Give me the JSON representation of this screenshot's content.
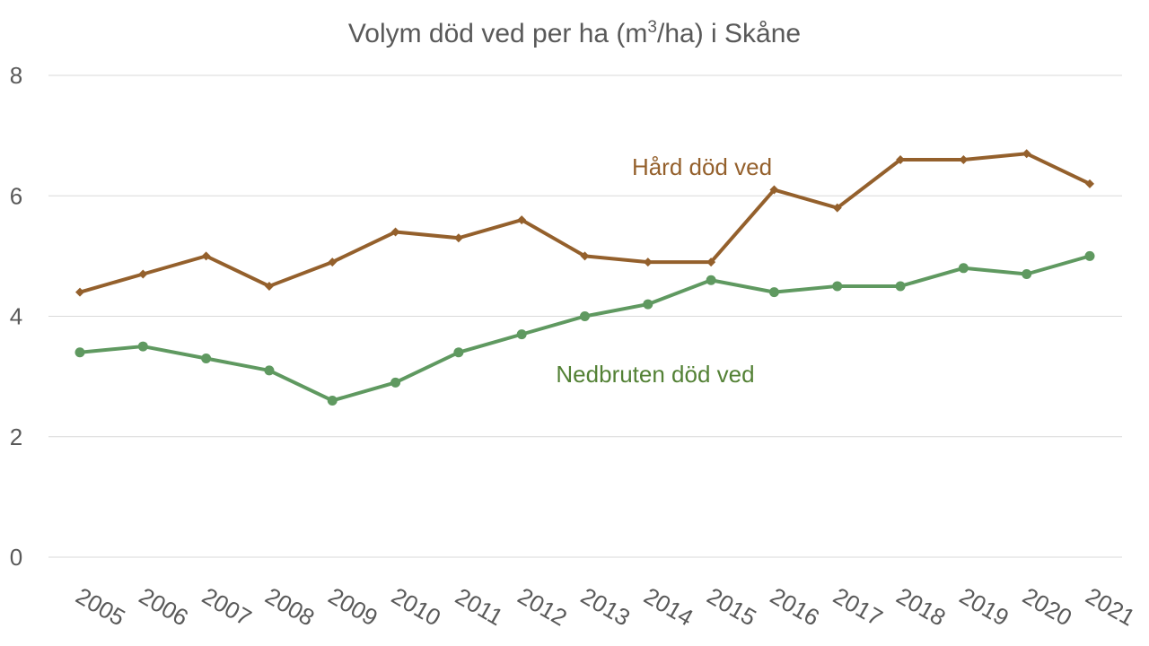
{
  "chart_data": {
    "type": "line",
    "title": "Volym död ved per ha (m³/ha) i Skåne",
    "title_parts": {
      "before": "Volym död ved per ha (m",
      "superscript": "3",
      "after": "/ha) i Skåne"
    },
    "x": [
      "2005",
      "2006",
      "2007",
      "2008",
      "2009",
      "2010",
      "2011",
      "2012",
      "2013",
      "2014",
      "2015",
      "2016",
      "2017",
      "2018",
      "2019",
      "2020",
      "2021"
    ],
    "ylim": [
      0,
      8
    ],
    "yticks": [
      "0",
      "2",
      "4",
      "6",
      "8"
    ],
    "grid": true,
    "legend": "inline",
    "series": [
      {
        "name": "Hård död ved",
        "color": "#94602c",
        "marker": "diamond",
        "values": [
          4.4,
          4.7,
          5.0,
          4.5,
          4.9,
          5.4,
          5.3,
          5.6,
          5.0,
          4.9,
          4.9,
          6.1,
          5.8,
          6.6,
          6.6,
          6.7,
          6.2
        ]
      },
      {
        "name": "Nedbruten död ved",
        "color": "#5f9960",
        "label_color": "#538135",
        "marker": "circle",
        "values": [
          3.4,
          3.5,
          3.3,
          3.1,
          2.6,
          2.9,
          3.4,
          3.7,
          4.0,
          4.2,
          4.6,
          4.4,
          4.5,
          4.5,
          4.8,
          4.7,
          5.0
        ]
      }
    ]
  }
}
